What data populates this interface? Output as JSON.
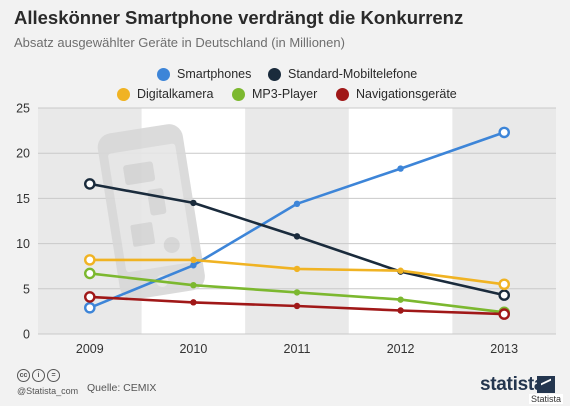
{
  "title": "Alleskönner Smartphone verdrängt die Konkurrenz",
  "subtitle": "Absatz ausgewählter Geräte in Deutschland (in Millionen)",
  "footer": {
    "credit": "@Statista_com",
    "source": "Quelle: CEMIX",
    "brand": "statista",
    "watermark": "Statista"
  },
  "colors": {
    "Smartphones": "#3d85d8",
    "Standard-Mobiltelefone": "#1a2b3c",
    "Digitalkamera": "#f0b323",
    "MP3-Player": "#7cb82f",
    "Navigationsgeräte": "#a01818"
  },
  "chart_data": {
    "type": "line",
    "x": [
      "2009",
      "2010",
      "2011",
      "2012",
      "2013"
    ],
    "ylim": [
      0,
      25
    ],
    "yticks": [
      0,
      5,
      10,
      15,
      20,
      25
    ],
    "grid": true,
    "legend_position": "top",
    "series": [
      {
        "name": "Smartphones",
        "values": [
          2.9,
          7.6,
          14.4,
          18.3,
          22.3
        ]
      },
      {
        "name": "Standard-Mobiltelefone",
        "values": [
          16.6,
          14.5,
          10.8,
          6.9,
          4.3
        ]
      },
      {
        "name": "Digitalkamera",
        "values": [
          8.2,
          8.2,
          7.2,
          7.0,
          5.5
        ]
      },
      {
        "name": "MP3-Player",
        "values": [
          6.7,
          5.4,
          4.6,
          3.8,
          2.4
        ]
      },
      {
        "name": "Navigationsgeräte",
        "values": [
          4.1,
          3.5,
          3.1,
          2.6,
          2.2
        ]
      }
    ]
  }
}
